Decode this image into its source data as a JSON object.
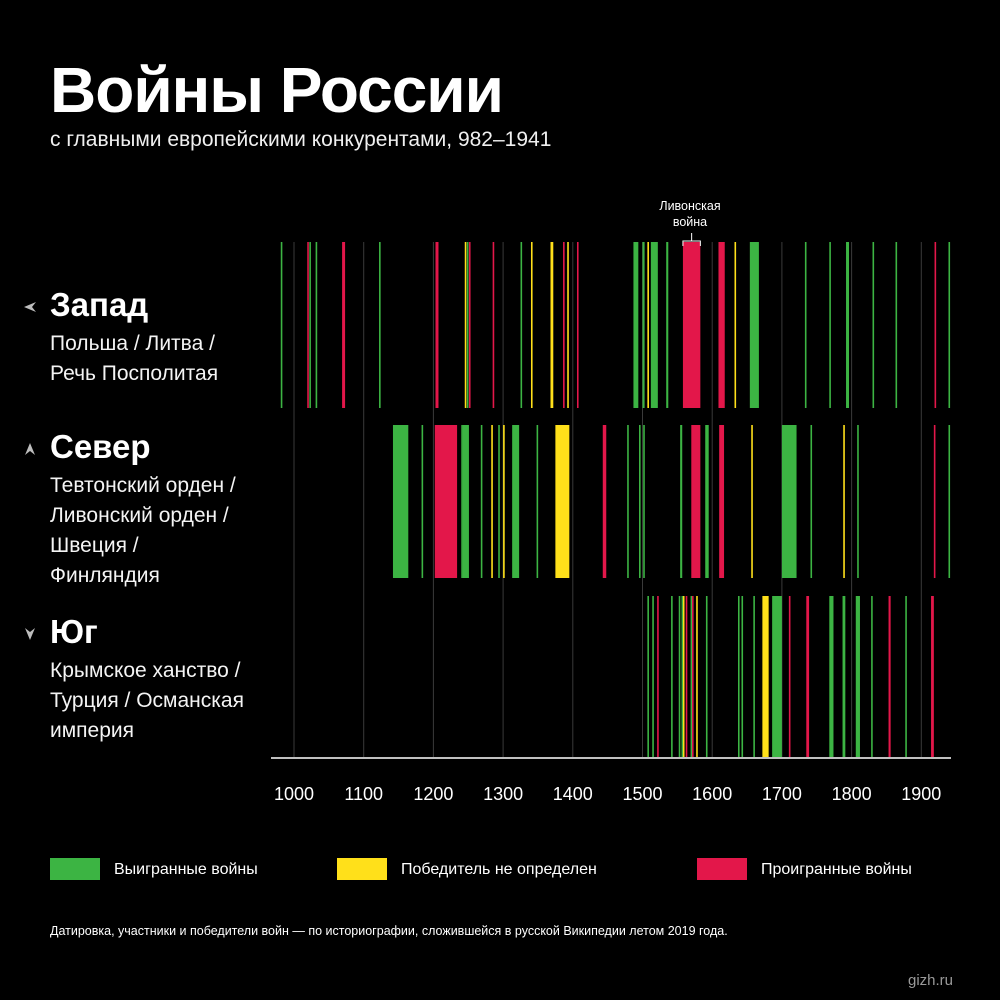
{
  "header": {
    "title": "Войны России",
    "subtitle": "с главными европейскими конкурентами, 982–1941"
  },
  "regions": [
    {
      "name": "Запад",
      "arrow_icon": "arrow-left-icon",
      "lines": [
        "Польша / Литва /",
        "Речь Посполитая"
      ]
    },
    {
      "name": "Север",
      "arrow_icon": "arrow-up-icon",
      "lines": [
        "Тевтонский орден /",
        "Ливонский орден /",
        "Швеция /",
        "Финляндия"
      ]
    },
    {
      "name": "Юг",
      "arrow_icon": "arrow-down-icon",
      "lines": [
        "Крымское ханство /",
        "Турция / Османская",
        "империя"
      ]
    }
  ],
  "legend": {
    "won": "Выигранные войны",
    "undetermined": "Победитель не определен",
    "lost": "Проигранные войны"
  },
  "colors": {
    "won": "#3cb443",
    "undetermined": "#ffe01a",
    "lost": "#e3174a",
    "background": "#000000",
    "gridline": "#3a3a3a"
  },
  "footnote": "Датировка, участники и победители войн — по историографии, сложившейся в русской Википедии летом 2019 года.",
  "source": "gizh.ru",
  "chart_data": {
    "type": "timeline",
    "title": "Войны России",
    "subtitle": "с главными европейскими конкурентами, 982–1941",
    "x_range": [
      963,
      1941
    ],
    "x_ticks": [
      1000,
      1100,
      1200,
      1300,
      1400,
      1500,
      1600,
      1700,
      1800,
      1900
    ],
    "annotation": {
      "label_lines": [
        "Ливонская",
        "война"
      ],
      "lane": "west",
      "start": 1558,
      "end": 1583
    },
    "lanes": [
      {
        "id": "west",
        "name": "Запад",
        "wars": [
          {
            "start": 981,
            "end": 982,
            "outcome": "won"
          },
          {
            "start": 1019,
            "end": 1020,
            "outcome": "lost"
          },
          {
            "start": 1022,
            "end": 1023,
            "outcome": "won"
          },
          {
            "start": 1031,
            "end": 1032,
            "outcome": "won"
          },
          {
            "start": 1069,
            "end": 1070,
            "outcome": "lost"
          },
          {
            "start": 1071,
            "end": 1072,
            "outcome": "lost"
          },
          {
            "start": 1122,
            "end": 1123,
            "outcome": "won"
          },
          {
            "start": 1203,
            "end": 1204,
            "outcome": "lost"
          },
          {
            "start": 1205,
            "end": 1206,
            "outcome": "lost"
          },
          {
            "start": 1245,
            "end": 1246,
            "outcome": "undetermined"
          },
          {
            "start": 1248,
            "end": 1249,
            "outcome": "won"
          },
          {
            "start": 1251,
            "end": 1252,
            "outcome": "lost"
          },
          {
            "start": 1285,
            "end": 1286,
            "outcome": "lost"
          },
          {
            "start": 1325,
            "end": 1326,
            "outcome": "won"
          },
          {
            "start": 1340,
            "end": 1341,
            "outcome": "undetermined"
          },
          {
            "start": 1368,
            "end": 1372,
            "outcome": "undetermined"
          },
          {
            "start": 1386,
            "end": 1387,
            "outcome": "lost"
          },
          {
            "start": 1392,
            "end": 1394,
            "outcome": "undetermined"
          },
          {
            "start": 1406,
            "end": 1408,
            "outcome": "lost"
          },
          {
            "start": 1487,
            "end": 1494,
            "outcome": "won"
          },
          {
            "start": 1500,
            "end": 1503,
            "outcome": "won"
          },
          {
            "start": 1507,
            "end": 1508,
            "outcome": "undetermined"
          },
          {
            "start": 1512,
            "end": 1522,
            "outcome": "won"
          },
          {
            "start": 1534,
            "end": 1537,
            "outcome": "won"
          },
          {
            "start": 1558,
            "end": 1583,
            "outcome": "lost"
          },
          {
            "start": 1609,
            "end": 1618,
            "outcome": "lost"
          },
          {
            "start": 1632,
            "end": 1634,
            "outcome": "undetermined"
          },
          {
            "start": 1654,
            "end": 1667,
            "outcome": "won"
          },
          {
            "start": 1733,
            "end": 1735,
            "outcome": "won"
          },
          {
            "start": 1768,
            "end": 1770,
            "outcome": "won"
          },
          {
            "start": 1792,
            "end": 1793,
            "outcome": "won"
          },
          {
            "start": 1794,
            "end": 1795,
            "outcome": "won"
          },
          {
            "start": 1830,
            "end": 1831,
            "outcome": "won"
          },
          {
            "start": 1863,
            "end": 1864,
            "outcome": "won"
          },
          {
            "start": 1919,
            "end": 1921,
            "outcome": "lost"
          },
          {
            "start": 1939,
            "end": 1940,
            "outcome": "won"
          }
        ]
      },
      {
        "id": "north",
        "name": "Север",
        "wars": [
          {
            "start": 1142,
            "end": 1164,
            "outcome": "won"
          },
          {
            "start": 1183,
            "end": 1184,
            "outcome": "won"
          },
          {
            "start": 1202,
            "end": 1234,
            "outcome": "lost"
          },
          {
            "start": 1240,
            "end": 1242,
            "outcome": "won"
          },
          {
            "start": 1242,
            "end": 1251,
            "outcome": "won"
          },
          {
            "start": 1268,
            "end": 1269,
            "outcome": "won"
          },
          {
            "start": 1283,
            "end": 1284,
            "outcome": "undetermined"
          },
          {
            "start": 1293,
            "end": 1295,
            "outcome": "won"
          },
          {
            "start": 1300,
            "end": 1301,
            "outcome": "undetermined"
          },
          {
            "start": 1313,
            "end": 1323,
            "outcome": "won"
          },
          {
            "start": 1348,
            "end": 1349,
            "outcome": "won"
          },
          {
            "start": 1375,
            "end": 1395,
            "outcome": "undetermined"
          },
          {
            "start": 1443,
            "end": 1448,
            "outcome": "lost"
          },
          {
            "start": 1478,
            "end": 1479,
            "outcome": "won"
          },
          {
            "start": 1495,
            "end": 1497,
            "outcome": "won"
          },
          {
            "start": 1501,
            "end": 1503,
            "outcome": "won"
          },
          {
            "start": 1554,
            "end": 1557,
            "outcome": "won"
          },
          {
            "start": 1570,
            "end": 1583,
            "outcome": "lost"
          },
          {
            "start": 1590,
            "end": 1595,
            "outcome": "won"
          },
          {
            "start": 1610,
            "end": 1617,
            "outcome": "lost"
          },
          {
            "start": 1656,
            "end": 1658,
            "outcome": "undetermined"
          },
          {
            "start": 1700,
            "end": 1721,
            "outcome": "won"
          },
          {
            "start": 1741,
            "end": 1743,
            "outcome": "won"
          },
          {
            "start": 1788,
            "end": 1790,
            "outcome": "undetermined"
          },
          {
            "start": 1808,
            "end": 1809,
            "outcome": "won"
          },
          {
            "start": 1918,
            "end": 1920,
            "outcome": "lost"
          },
          {
            "start": 1939,
            "end": 1940,
            "outcome": "won"
          }
        ]
      },
      {
        "id": "south",
        "name": "Юг",
        "wars": [
          {
            "start": 1507,
            "end": 1508,
            "outcome": "won"
          },
          {
            "start": 1514,
            "end": 1515,
            "outcome": "won"
          },
          {
            "start": 1521,
            "end": 1522,
            "outcome": "lost"
          },
          {
            "start": 1541,
            "end": 1542,
            "outcome": "won"
          },
          {
            "start": 1552,
            "end": 1553,
            "outcome": "won"
          },
          {
            "start": 1556,
            "end": 1557,
            "outcome": "won"
          },
          {
            "start": 1558,
            "end": 1559,
            "outcome": "undetermined"
          },
          {
            "start": 1562,
            "end": 1563,
            "outcome": "lost"
          },
          {
            "start": 1569,
            "end": 1570,
            "outcome": "won"
          },
          {
            "start": 1571,
            "end": 1572,
            "outcome": "lost"
          },
          {
            "start": 1577,
            "end": 1578,
            "outcome": "undetermined"
          },
          {
            "start": 1591,
            "end": 1592,
            "outcome": "won"
          },
          {
            "start": 1637,
            "end": 1638,
            "outcome": "won"
          },
          {
            "start": 1642,
            "end": 1643,
            "outcome": "won"
          },
          {
            "start": 1659,
            "end": 1660,
            "outcome": "won"
          },
          {
            "start": 1672,
            "end": 1681,
            "outcome": "undetermined"
          },
          {
            "start": 1686,
            "end": 1700,
            "outcome": "won"
          },
          {
            "start": 1710,
            "end": 1711,
            "outcome": "lost"
          },
          {
            "start": 1735,
            "end": 1739,
            "outcome": "lost"
          },
          {
            "start": 1768,
            "end": 1774,
            "outcome": "won"
          },
          {
            "start": 1787,
            "end": 1791,
            "outcome": "won"
          },
          {
            "start": 1806,
            "end": 1812,
            "outcome": "won"
          },
          {
            "start": 1828,
            "end": 1829,
            "outcome": "won"
          },
          {
            "start": 1853,
            "end": 1856,
            "outcome": "lost"
          },
          {
            "start": 1877,
            "end": 1878,
            "outcome": "won"
          },
          {
            "start": 1914,
            "end": 1918,
            "outcome": "lost"
          }
        ]
      }
    ]
  }
}
